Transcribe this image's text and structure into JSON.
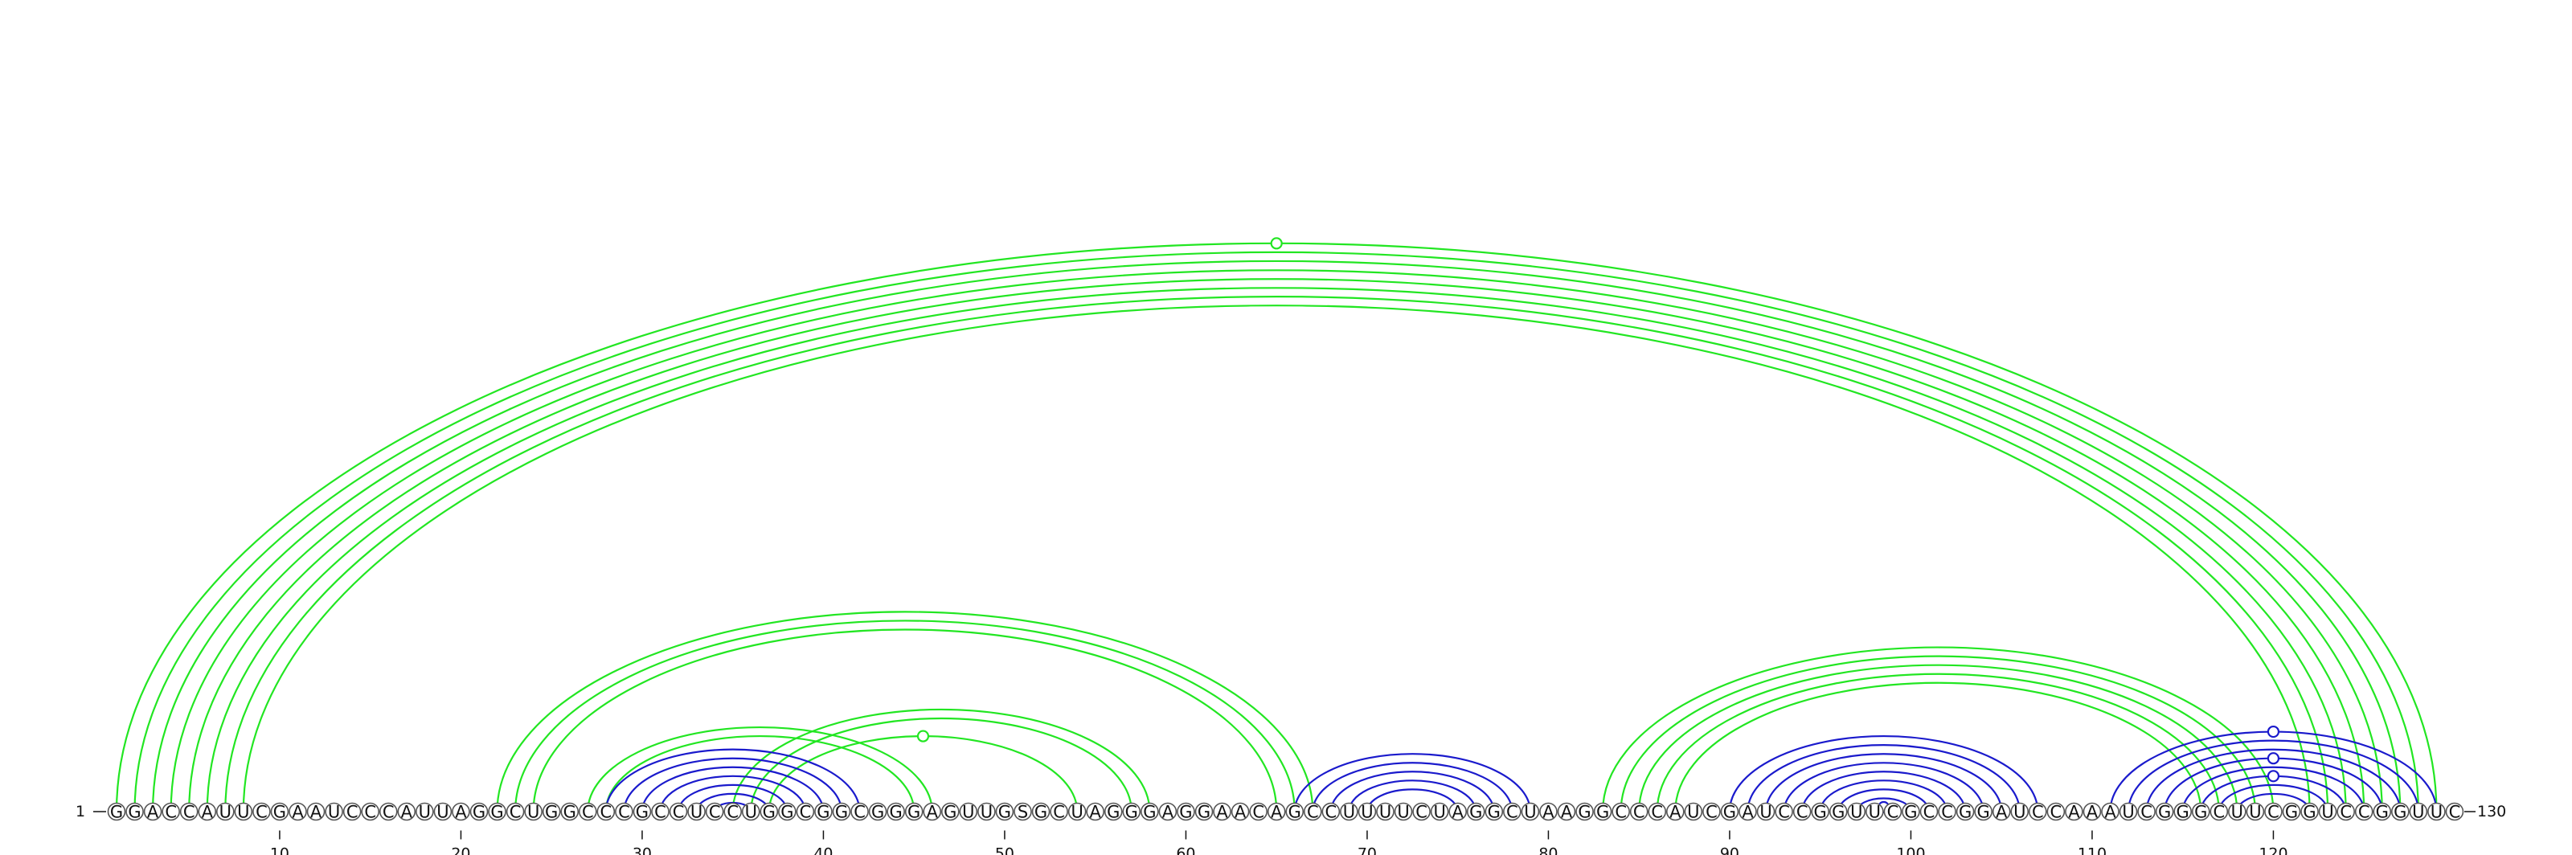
{
  "sequence": "GGACCAUUCGAAUCCCAUUAGGCUGGCCCGCCUCCUGGCGGCGGGAGUUGSGCUAGGGAGGAACAGCCUUUUCUAGGCUAAGGCCCAUCGAUCCGGUUCGCCGGAUCCAAAUCGGGCUUCGGUCCGGUUC",
  "start_label": "1",
  "end_label": "130",
  "ticks": [
    10,
    20,
    30,
    40,
    50,
    60,
    70,
    80,
    90,
    100,
    110,
    120
  ],
  "colors": {
    "green": "#22e622",
    "blue": "#1a1acc"
  },
  "arcs": [
    {
      "i": 1,
      "j": 129,
      "c": "green"
    },
    {
      "i": 2,
      "j": 128,
      "c": "green"
    },
    {
      "i": 3,
      "j": 127,
      "c": "green"
    },
    {
      "i": 4,
      "j": 126,
      "c": "green"
    },
    {
      "i": 5,
      "j": 125,
      "c": "green"
    },
    {
      "i": 6,
      "j": 124,
      "c": "green"
    },
    {
      "i": 7,
      "j": 123,
      "c": "green"
    },
    {
      "i": 8,
      "j": 122,
      "c": "green"
    },
    {
      "i": 22,
      "j": 67,
      "c": "green"
    },
    {
      "i": 23,
      "j": 66,
      "c": "green"
    },
    {
      "i": 24,
      "j": 65,
      "c": "green"
    },
    {
      "i": 27,
      "j": 46,
      "c": "green"
    },
    {
      "i": 28,
      "j": 45,
      "c": "green"
    },
    {
      "i": 35,
      "j": 58,
      "c": "green"
    },
    {
      "i": 36,
      "j": 57,
      "c": "green"
    },
    {
      "i": 37,
      "j": 54,
      "c": "green"
    },
    {
      "i": 28,
      "j": 42,
      "c": "blue"
    },
    {
      "i": 29,
      "j": 41,
      "c": "blue"
    },
    {
      "i": 30,
      "j": 40,
      "c": "blue"
    },
    {
      "i": 31,
      "j": 39,
      "c": "blue"
    },
    {
      "i": 32,
      "j": 38,
      "c": "blue"
    },
    {
      "i": 33,
      "j": 37,
      "c": "blue"
    },
    {
      "i": 34,
      "j": 36,
      "c": "blue"
    },
    {
      "i": 66,
      "j": 79,
      "c": "blue"
    },
    {
      "i": 67,
      "j": 78,
      "c": "blue"
    },
    {
      "i": 68,
      "j": 77,
      "c": "blue"
    },
    {
      "i": 69,
      "j": 76,
      "c": "blue"
    },
    {
      "i": 70,
      "j": 75,
      "c": "blue"
    },
    {
      "i": 83,
      "j": 120,
      "c": "green"
    },
    {
      "i": 84,
      "j": 119,
      "c": "green"
    },
    {
      "i": 85,
      "j": 118,
      "c": "green"
    },
    {
      "i": 86,
      "j": 117,
      "c": "green"
    },
    {
      "i": 87,
      "j": 116,
      "c": "green"
    },
    {
      "i": 90,
      "j": 107,
      "c": "blue"
    },
    {
      "i": 91,
      "j": 106,
      "c": "blue"
    },
    {
      "i": 92,
      "j": 105,
      "c": "blue"
    },
    {
      "i": 93,
      "j": 104,
      "c": "blue"
    },
    {
      "i": 94,
      "j": 103,
      "c": "blue"
    },
    {
      "i": 95,
      "j": 102,
      "c": "blue"
    },
    {
      "i": 96,
      "j": 101,
      "c": "blue"
    },
    {
      "i": 97,
      "j": 100,
      "c": "blue"
    },
    {
      "i": 111,
      "j": 129,
      "c": "blue"
    },
    {
      "i": 112,
      "j": 128,
      "c": "blue"
    },
    {
      "i": 113,
      "j": 127,
      "c": "blue"
    },
    {
      "i": 114,
      "j": 126,
      "c": "blue"
    },
    {
      "i": 115,
      "j": 125,
      "c": "blue"
    },
    {
      "i": 116,
      "j": 124,
      "c": "blue"
    },
    {
      "i": 117,
      "j": 123,
      "c": "blue"
    },
    {
      "i": 118,
      "j": 122,
      "c": "blue"
    }
  ],
  "markers": [
    {
      "i": 1,
      "j": 129,
      "c": "green"
    },
    {
      "i": 37,
      "j": 54,
      "c": "green"
    },
    {
      "i": 98,
      "j": 99,
      "c": "blue"
    },
    {
      "i": 111,
      "j": 129,
      "c": "blue"
    },
    {
      "i": 114,
      "j": 126,
      "c": "blue"
    },
    {
      "i": 116,
      "j": 124,
      "c": "blue"
    }
  ]
}
